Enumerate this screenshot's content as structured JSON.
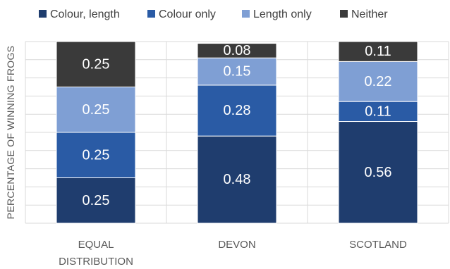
{
  "chart_data": {
    "type": "bar",
    "stacked": true,
    "ylabel": "PERCENTAGE OF WINNING FROGS",
    "xlabel": "",
    "ylim": [
      0,
      1
    ],
    "grid": true,
    "legend_position": "top",
    "categories": [
      "EQUAL\nDISTRIBUTION",
      "DEVON",
      "SCOTLAND"
    ],
    "series": [
      {
        "name": "Colour, length",
        "values": [
          0.25,
          0.48,
          0.56
        ],
        "color": "#1f3d6e"
      },
      {
        "name": "Colour only",
        "values": [
          0.25,
          0.28,
          0.11
        ],
        "color": "#2a5ba5"
      },
      {
        "name": "Length only",
        "values": [
          0.25,
          0.15,
          0.22
        ],
        "color": "#7f9fd4"
      },
      {
        "name": "Neither",
        "values": [
          0.25,
          0.08,
          0.11
        ],
        "color": "#3a3a3a"
      }
    ]
  }
}
